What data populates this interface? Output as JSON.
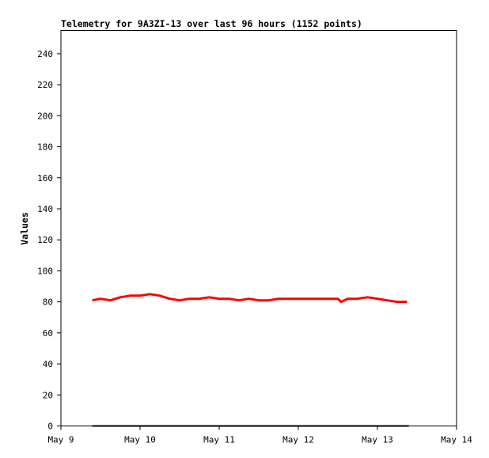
{
  "chart_data": {
    "type": "line",
    "title": "Telemetry for 9A3ZI-13 over last 96 hours (1152 points)",
    "xlabel": "",
    "ylabel": "Values",
    "x_ticks": [
      "May 9",
      "May 10",
      "May 11",
      "May 12",
      "May 13",
      "May 14"
    ],
    "y_ticks": [
      "0",
      "20",
      "40",
      "60",
      "80",
      "100",
      "120",
      "140",
      "160",
      "180",
      "200",
      "220",
      "240"
    ],
    "xlim": [
      "2023-05-09 00:00",
      "2023-05-14 00:00"
    ],
    "ylim": [
      0,
      255
    ],
    "grid": false,
    "legend": "none",
    "series": [
      {
        "color": "#ff0000",
        "x": [
          "2023-05-09 09:30",
          "2023-05-09 12:00",
          "2023-05-09 15:00",
          "2023-05-09 18:00",
          "2023-05-09 21:00",
          "2023-05-10 00:00",
          "2023-05-10 03:00",
          "2023-05-10 06:00",
          "2023-05-10 09:00",
          "2023-05-10 12:00",
          "2023-05-10 15:00",
          "2023-05-10 18:00",
          "2023-05-10 21:00",
          "2023-05-11 00:00",
          "2023-05-11 03:00",
          "2023-05-11 06:00",
          "2023-05-11 09:00",
          "2023-05-11 12:00",
          "2023-05-11 15:00",
          "2023-05-11 18:00",
          "2023-05-11 21:00",
          "2023-05-12 00:00",
          "2023-05-12 03:00",
          "2023-05-12 06:00",
          "2023-05-12 09:00",
          "2023-05-12 12:00",
          "2023-05-12 13:00",
          "2023-05-12 15:00",
          "2023-05-12 18:00",
          "2023-05-12 21:00",
          "2023-05-13 00:00",
          "2023-05-13 03:00",
          "2023-05-13 06:00",
          "2023-05-13 09:00"
        ],
        "values": [
          81,
          82,
          81,
          83,
          84,
          84,
          85,
          84,
          82,
          81,
          82,
          82,
          83,
          82,
          82,
          81,
          82,
          81,
          81,
          82,
          82,
          82,
          82,
          82,
          82,
          82,
          80,
          82,
          82,
          83,
          82,
          81,
          80,
          80
        ]
      },
      {
        "color": "#000000",
        "x": [
          "2023-05-09 09:30",
          "2023-05-13 09:30"
        ],
        "values": [
          0,
          0
        ]
      }
    ]
  }
}
